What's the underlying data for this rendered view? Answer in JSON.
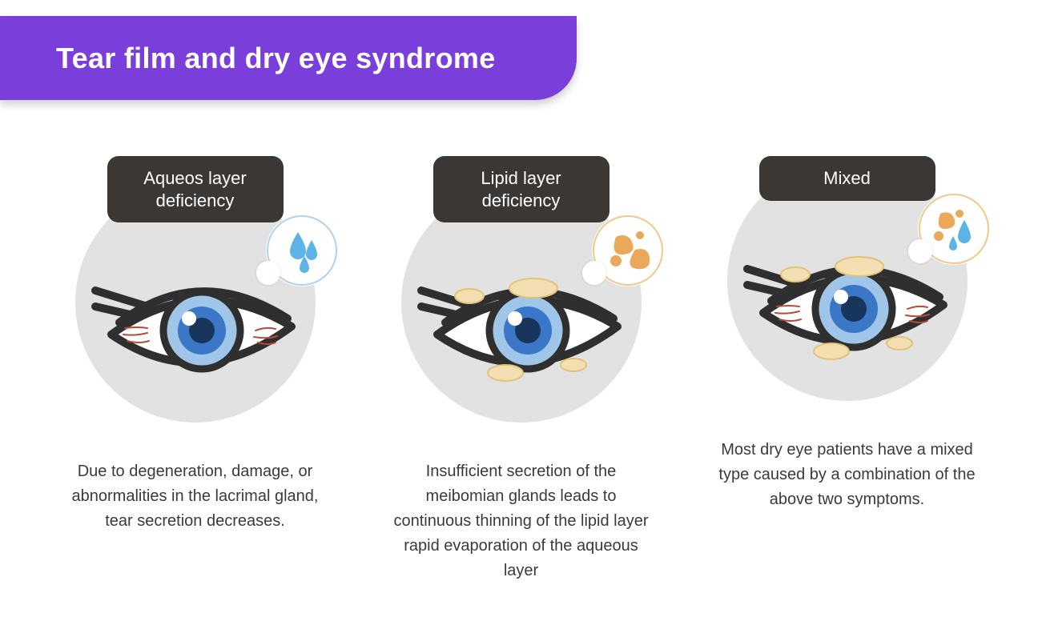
{
  "title": "Tear film and dry eye syndrome",
  "banner_color": "#7a3edb",
  "pill_bg": "#3a3734",
  "circle_bg": "#e2e2e2",
  "eye": {
    "stroke": "#2f2f2f",
    "sclera": "#ffffff",
    "iris_outer": "#9fc6e8",
    "iris_inner": "#3b77c6",
    "pupil": "#18365b",
    "vein": "#b84a3a",
    "oil_fill": "#f4dfb3",
    "oil_stroke": "#e3c27a",
    "drop_fill": "#5cb4e6",
    "blob_fill": "#e9a85a",
    "badge_border_aq": "#aed3ea",
    "badge_border_lipid": "#f1c887"
  },
  "cards": [
    {
      "label": "Aqueos layer\ndeficiency",
      "badge": "aqueous",
      "veins": true,
      "oil": false,
      "desc": "Due to degeneration, damage, or abnormalities in the lacrimal gland, tear secretion decreases."
    },
    {
      "label": "Lipid layer\ndeficiency",
      "badge": "lipid",
      "veins": false,
      "oil": true,
      "desc": "Insufficient secretion of the meibomian glands leads to continuous thinning of the lipid layer rapid evaporation of the aqueous layer"
    },
    {
      "label": "Mixed",
      "badge": "mixed",
      "veins": true,
      "oil": true,
      "desc": "Most dry eye patients have a mixed type caused by a combination of the above two symptoms."
    }
  ]
}
